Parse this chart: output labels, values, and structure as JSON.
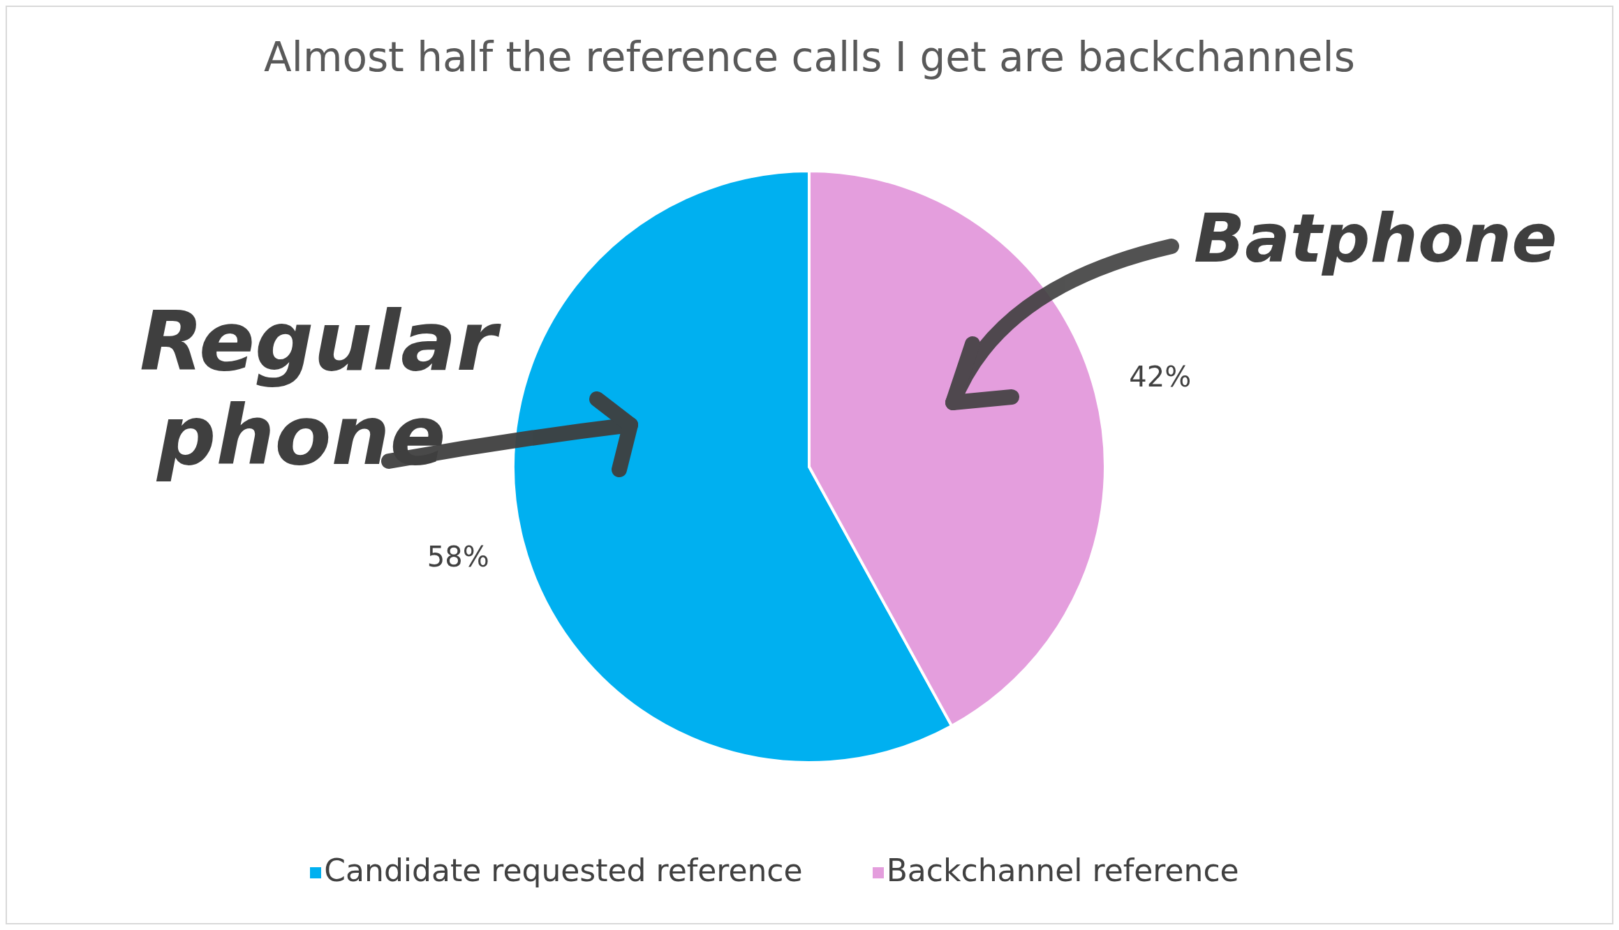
{
  "chart_data": {
    "type": "pie",
    "title": "Almost half the reference calls I get are backchannels",
    "categories": [
      "Candidate requested reference",
      "Backchannel reference"
    ],
    "values": [
      58,
      42
    ],
    "colors": [
      "#00b0f0",
      "#e49edd"
    ],
    "value_labels": [
      "58%",
      "42%"
    ],
    "legend": "bottom",
    "annotations": [
      "Regular phone",
      "Batphone"
    ]
  }
}
